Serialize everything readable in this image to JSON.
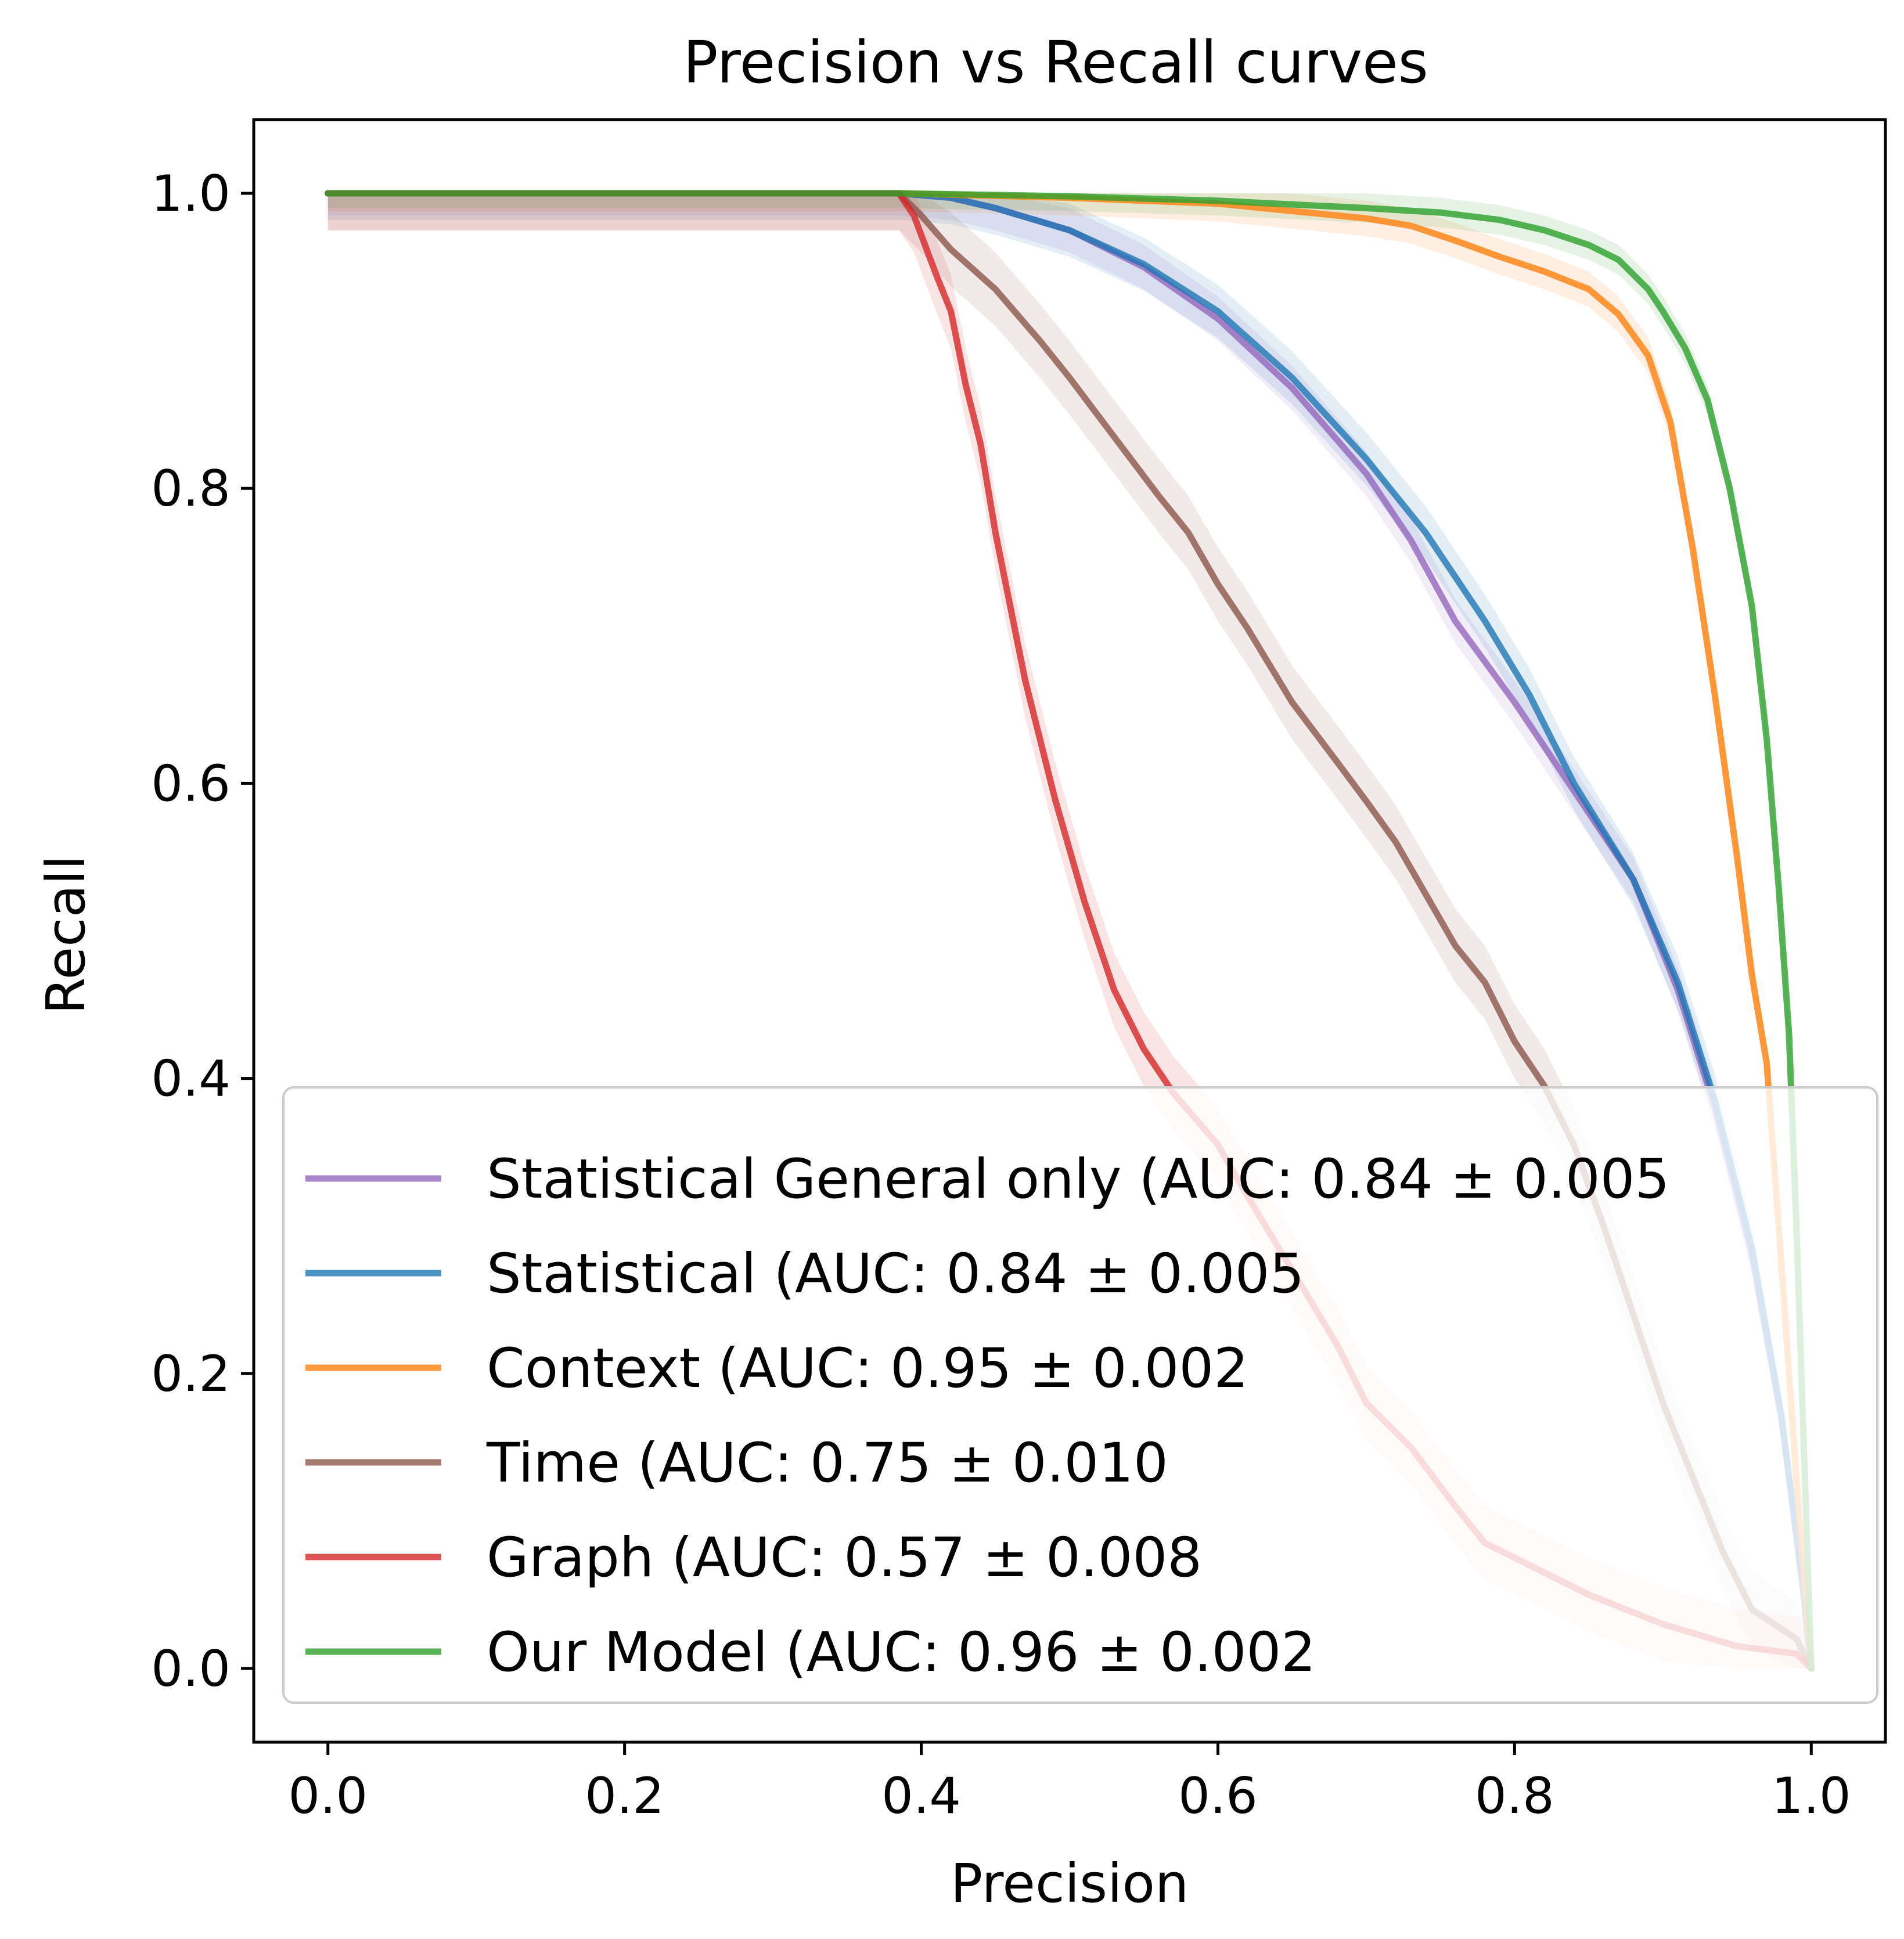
{
  "chart_data": {
    "type": "line",
    "title": "Precision vs Recall curves",
    "xlabel": "Precision",
    "ylabel": "Recall",
    "xlim": [
      -0.05,
      1.05
    ],
    "ylim": [
      -0.05,
      1.05
    ],
    "xticks": [
      "0.0",
      "0.2",
      "0.4",
      "0.6",
      "0.8",
      "1.0"
    ],
    "yticks": [
      "0.0",
      "0.2",
      "0.4",
      "0.6",
      "0.8",
      "1.0"
    ],
    "grid": false,
    "legend_position": "lower-right",
    "series": [
      {
        "name": "Statistical General only (AUC: 0.84 ± 0.005",
        "color": "#9467bd",
        "band": 0.015,
        "points": [
          [
            0.0,
            1.0
          ],
          [
            0.385,
            1.0
          ],
          [
            0.42,
            0.997
          ],
          [
            0.45,
            0.99
          ],
          [
            0.5,
            0.975
          ],
          [
            0.55,
            0.95
          ],
          [
            0.6,
            0.915
          ],
          [
            0.65,
            0.868
          ],
          [
            0.7,
            0.81
          ],
          [
            0.73,
            0.765
          ],
          [
            0.76,
            0.71
          ],
          [
            0.8,
            0.655
          ],
          [
            0.84,
            0.595
          ],
          [
            0.88,
            0.535
          ],
          [
            0.91,
            0.46
          ],
          [
            0.935,
            0.38
          ],
          [
            0.96,
            0.28
          ],
          [
            0.98,
            0.17
          ],
          [
            0.995,
            0.05
          ],
          [
            1.0,
            0.0
          ]
        ]
      },
      {
        "name": "Statistical (AUC: 0.84 ± 0.005",
        "color": "#1f77b4",
        "band": 0.018,
        "points": [
          [
            0.0,
            1.0
          ],
          [
            0.385,
            1.0
          ],
          [
            0.42,
            0.997
          ],
          [
            0.45,
            0.99
          ],
          [
            0.5,
            0.975
          ],
          [
            0.55,
            0.952
          ],
          [
            0.6,
            0.92
          ],
          [
            0.65,
            0.875
          ],
          [
            0.7,
            0.82
          ],
          [
            0.74,
            0.77
          ],
          [
            0.78,
            0.71
          ],
          [
            0.81,
            0.66
          ],
          [
            0.84,
            0.6
          ],
          [
            0.88,
            0.535
          ],
          [
            0.91,
            0.465
          ],
          [
            0.935,
            0.385
          ],
          [
            0.96,
            0.285
          ],
          [
            0.98,
            0.17
          ],
          [
            0.995,
            0.05
          ],
          [
            1.0,
            0.0
          ]
        ]
      },
      {
        "name": "Context  (AUC: 0.95 ± 0.002",
        "color": "#ff7f0e",
        "band": 0.012,
        "points": [
          [
            0.0,
            1.0
          ],
          [
            0.385,
            1.0
          ],
          [
            0.5,
            0.997
          ],
          [
            0.6,
            0.993
          ],
          [
            0.65,
            0.988
          ],
          [
            0.7,
            0.983
          ],
          [
            0.73,
            0.978
          ],
          [
            0.76,
            0.968
          ],
          [
            0.79,
            0.957
          ],
          [
            0.82,
            0.947
          ],
          [
            0.85,
            0.935
          ],
          [
            0.87,
            0.918
          ],
          [
            0.89,
            0.89
          ],
          [
            0.905,
            0.845
          ],
          [
            0.92,
            0.76
          ],
          [
            0.935,
            0.66
          ],
          [
            0.95,
            0.55
          ],
          [
            0.96,
            0.47
          ],
          [
            0.97,
            0.41
          ],
          [
            0.978,
            0.3
          ],
          [
            0.985,
            0.2
          ],
          [
            0.992,
            0.1
          ],
          [
            1.0,
            0.0
          ]
        ]
      },
      {
        "name": "Time (AUC: 0.75 ± 0.010",
        "color": "#8c564b",
        "band": 0.025,
        "points": [
          [
            0.0,
            1.0
          ],
          [
            0.385,
            1.0
          ],
          [
            0.4,
            0.985
          ],
          [
            0.42,
            0.962
          ],
          [
            0.45,
            0.935
          ],
          [
            0.48,
            0.9
          ],
          [
            0.5,
            0.875
          ],
          [
            0.53,
            0.835
          ],
          [
            0.56,
            0.795
          ],
          [
            0.58,
            0.77
          ],
          [
            0.6,
            0.735
          ],
          [
            0.62,
            0.705
          ],
          [
            0.65,
            0.655
          ],
          [
            0.68,
            0.615
          ],
          [
            0.7,
            0.588
          ],
          [
            0.72,
            0.56
          ],
          [
            0.74,
            0.525
          ],
          [
            0.76,
            0.49
          ],
          [
            0.78,
            0.465
          ],
          [
            0.8,
            0.425
          ],
          [
            0.82,
            0.395
          ],
          [
            0.84,
            0.355
          ],
          [
            0.86,
            0.3
          ],
          [
            0.88,
            0.24
          ],
          [
            0.9,
            0.18
          ],
          [
            0.92,
            0.13
          ],
          [
            0.94,
            0.08
          ],
          [
            0.96,
            0.04
          ],
          [
            0.99,
            0.02
          ],
          [
            1.0,
            0.0
          ]
        ]
      },
      {
        "name": "Graph (AUC: 0.57 ± 0.008",
        "color": "#d62728",
        "band": 0.025,
        "points": [
          [
            0.0,
            1.0
          ],
          [
            0.385,
            1.0
          ],
          [
            0.395,
            0.985
          ],
          [
            0.41,
            0.945
          ],
          [
            0.42,
            0.92
          ],
          [
            0.43,
            0.87
          ],
          [
            0.44,
            0.83
          ],
          [
            0.45,
            0.77
          ],
          [
            0.46,
            0.72
          ],
          [
            0.47,
            0.67
          ],
          [
            0.49,
            0.59
          ],
          [
            0.51,
            0.52
          ],
          [
            0.53,
            0.46
          ],
          [
            0.55,
            0.42
          ],
          [
            0.57,
            0.39
          ],
          [
            0.6,
            0.355
          ],
          [
            0.62,
            0.32
          ],
          [
            0.65,
            0.27
          ],
          [
            0.68,
            0.22
          ],
          [
            0.7,
            0.18
          ],
          [
            0.73,
            0.15
          ],
          [
            0.76,
            0.11
          ],
          [
            0.78,
            0.085
          ],
          [
            0.81,
            0.07
          ],
          [
            0.85,
            0.05
          ],
          [
            0.9,
            0.03
          ],
          [
            0.95,
            0.015
          ],
          [
            0.99,
            0.01
          ],
          [
            1.0,
            0.0
          ]
        ]
      },
      {
        "name": "Our Model (AUC: 0.96 ± 0.002",
        "color": "#2ca02c",
        "band": 0.01,
        "points": [
          [
            0.0,
            1.0
          ],
          [
            0.385,
            1.0
          ],
          [
            0.5,
            0.998
          ],
          [
            0.6,
            0.995
          ],
          [
            0.7,
            0.99
          ],
          [
            0.75,
            0.987
          ],
          [
            0.79,
            0.982
          ],
          [
            0.82,
            0.975
          ],
          [
            0.85,
            0.965
          ],
          [
            0.87,
            0.955
          ],
          [
            0.89,
            0.935
          ],
          [
            0.9,
            0.92
          ],
          [
            0.915,
            0.895
          ],
          [
            0.93,
            0.86
          ],
          [
            0.945,
            0.8
          ],
          [
            0.96,
            0.72
          ],
          [
            0.97,
            0.63
          ],
          [
            0.978,
            0.53
          ],
          [
            0.985,
            0.43
          ],
          [
            0.99,
            0.3
          ],
          [
            0.995,
            0.15
          ],
          [
            1.0,
            0.0
          ]
        ]
      }
    ]
  }
}
